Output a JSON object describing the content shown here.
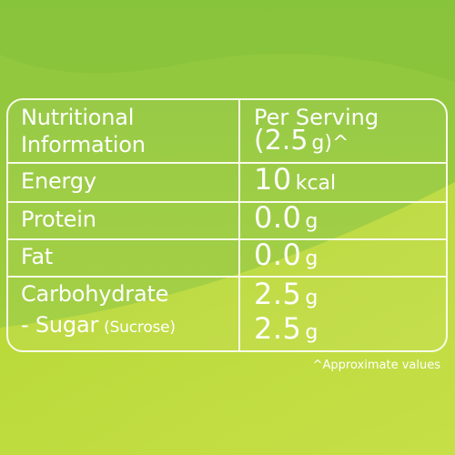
{
  "colors": {
    "background_top": "#8dc63f",
    "background_bottom": "#c3dd2e",
    "text": "#ffffff"
  },
  "header": {
    "label_line1": "Nutritional",
    "label_line2": "Information",
    "value_line1": "Per Serving",
    "value_amount": "(2.5",
    "value_unit": "g)^"
  },
  "rows": [
    {
      "label": "Energy",
      "value": "10",
      "unit": "kcal"
    },
    {
      "label": "Protein",
      "value": "0.0",
      "unit": "g"
    },
    {
      "label": "Fat",
      "value": "0.0",
      "unit": "g"
    },
    {
      "label": "Carbohydrate",
      "value": "2.5",
      "unit": "g"
    },
    {
      "label": "- Sugar",
      "label_note": "(Sucrose)",
      "value": "2.5",
      "unit": "g"
    }
  ],
  "footnote": "^Approximate values"
}
